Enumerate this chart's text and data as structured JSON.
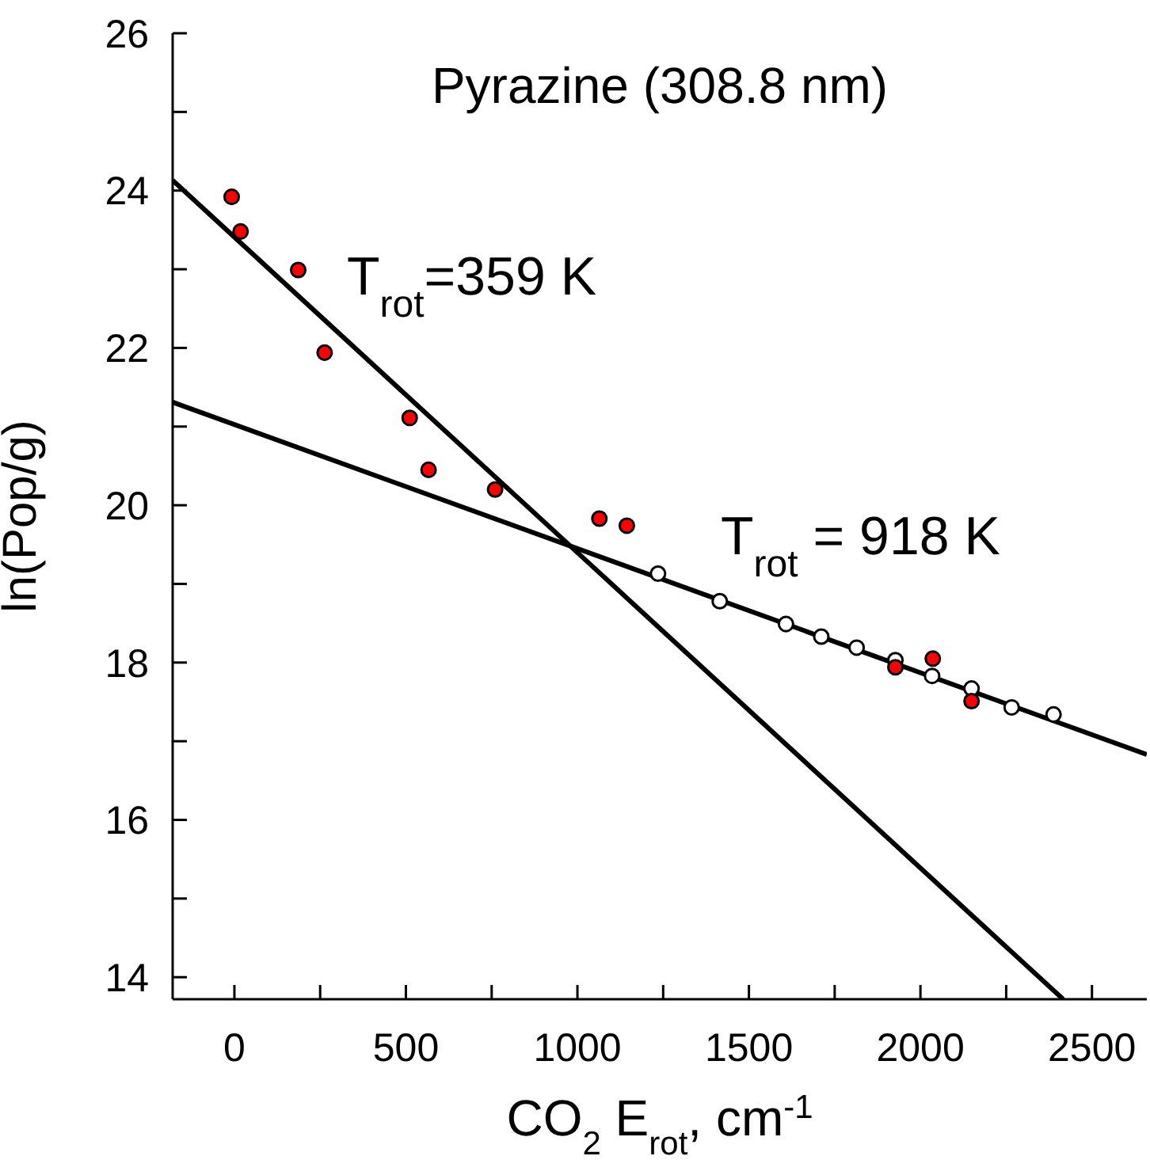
{
  "chart_data": {
    "type": "scatter",
    "title": "Pyrazine (308.8 nm)",
    "xlabel": "CO$_{2}$ E$_{rot}$, cm$^{-1}$",
    "ylabel": "ln(Pop/g)",
    "xlim": [
      -180,
      2660
    ],
    "ylim": [
      13.72,
      26
    ],
    "xticks": [
      0,
      {
        "value": 250,
        "label": null
      },
      500,
      {
        "value": 750,
        "label": null
      },
      1000,
      {
        "value": 1250,
        "label": null
      },
      1500,
      {
        "value": 1750,
        "label": null
      },
      2000,
      {
        "value": 2250,
        "label": null
      },
      2500
    ],
    "yticks": [
      14,
      {
        "value": 15,
        "label": null
      },
      16,
      {
        "value": 17,
        "label": null
      },
      18,
      {
        "value": 19,
        "label": null
      },
      20,
      {
        "value": 21,
        "label": null
      },
      22,
      {
        "value": 23,
        "label": null
      },
      24,
      {
        "value": 25,
        "label": null
      },
      26
    ],
    "grid": false,
    "legend": false,
    "series": [
      {
        "type": "line",
        "color": "#000000",
        "line_style": "solid",
        "x": [
          -180,
          2416
        ],
        "values": [
          24.13,
          13.72
        ]
      },
      {
        "type": "line",
        "color": "#000000",
        "line_style": "solid",
        "x": [
          -180,
          2660
        ],
        "values": [
          21.31,
          16.83
        ]
      },
      {
        "marker": "circle",
        "color": "#ffffff",
        "x": [
          1235,
          1415,
          1608,
          1711,
          1814,
          1927,
          2034,
          2149,
          2266,
          2388
        ],
        "values": [
          19.13,
          18.78,
          18.49,
          18.33,
          18.19,
          18.03,
          17.83,
          17.67,
          17.43,
          17.34
        ]
      },
      {
        "marker": "circle",
        "color": "#ff0000",
        "x": [
          -8,
          18,
          186,
          263,
          511,
          566,
          760,
          1064,
          1144,
          1927,
          2036,
          2149
        ],
        "values": [
          23.92,
          23.48,
          22.99,
          21.94,
          21.11,
          20.45,
          20.2,
          19.83,
          19.74,
          17.94,
          18.05,
          17.51
        ]
      }
    ],
    "annotations": [
      "T$_{rot}$=359 K",
      "T$_{rot}$ = 918 K"
    ]
  }
}
